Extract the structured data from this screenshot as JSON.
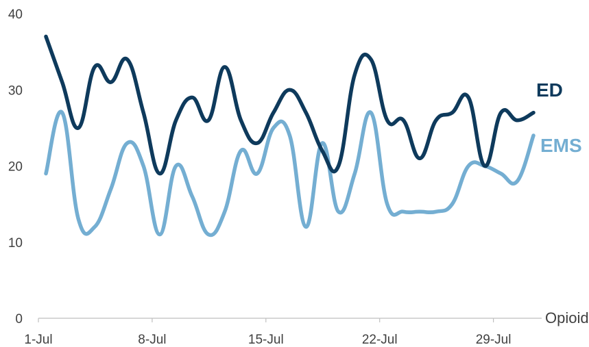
{
  "chart_data": {
    "type": "line",
    "title": "",
    "xlabel": "",
    "ylabel": "",
    "ylim": [
      0,
      40
    ],
    "y_ticks": [
      0,
      10,
      20,
      30,
      40
    ],
    "grid": false,
    "x_tick_labels": [
      "1-Jul",
      "8-Jul",
      "15-Jul",
      "22-Jul",
      "29-Jul"
    ],
    "annotation": "Opioid",
    "x": [
      "1-Jul",
      "2-Jul",
      "3-Jul",
      "4-Jul",
      "5-Jul",
      "6-Jul",
      "7-Jul",
      "8-Jul",
      "9-Jul",
      "10-Jul",
      "11-Jul",
      "12-Jul",
      "13-Jul",
      "14-Jul",
      "15-Jul",
      "16-Jul",
      "17-Jul",
      "18-Jul",
      "19-Jul",
      "20-Jul",
      "21-Jul",
      "22-Jul",
      "23-Jul",
      "24-Jul",
      "25-Jul",
      "26-Jul",
      "27-Jul",
      "28-Jul",
      "29-Jul",
      "30-Jul",
      "31-Jul"
    ],
    "series": [
      {
        "name": "ED",
        "color": "#0e3a5c",
        "values": [
          37,
          31,
          25,
          33,
          31,
          34,
          27,
          19,
          26,
          29,
          26,
          33,
          26,
          23,
          27,
          30,
          27,
          22,
          20,
          32,
          34,
          26,
          26,
          21,
          26,
          27,
          29,
          20,
          27,
          26,
          27
        ]
      },
      {
        "name": "EMS",
        "color": "#74aed2",
        "values": [
          19,
          27,
          13,
          12,
          17,
          23,
          20,
          11,
          20,
          16,
          11,
          14,
          22,
          19,
          25,
          24,
          12,
          23,
          14,
          19,
          27,
          15,
          14,
          14,
          14,
          15,
          20,
          20,
          19,
          18,
          24
        ]
      }
    ]
  }
}
